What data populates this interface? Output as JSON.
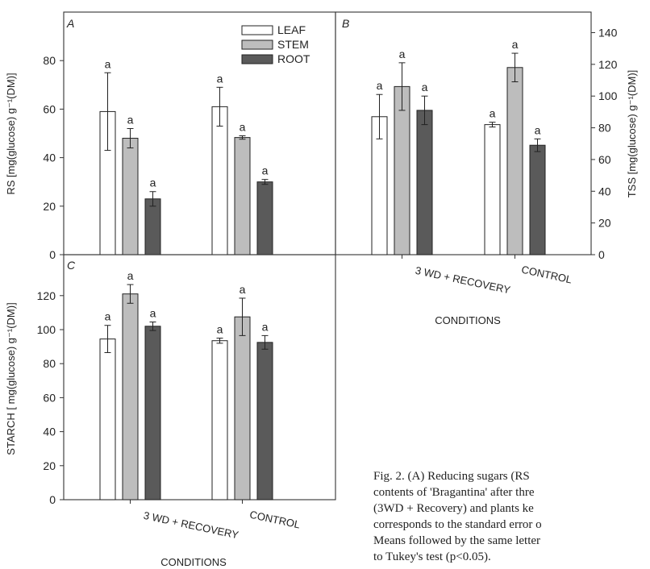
{
  "figure": {
    "legend": [
      {
        "label": "LEAF",
        "color": "#ffffff"
      },
      {
        "label": "STEM",
        "color": "#bdbdbd"
      },
      {
        "label": "ROOT",
        "color": "#5a5a5a"
      }
    ],
    "caption_lines": [
      "Fig. 2. (A) Reducing sugars (RS",
      "contents of 'Bragantina' after thre",
      "(3WD + Recovery) and plants ke",
      "corresponds to the standard error o",
      "Means followed by the same letter",
      "to Tukey's test (p<0.05)."
    ]
  },
  "chart_data": [
    {
      "panel": "A",
      "type": "bar",
      "ylabel": "RS [mg(glucose) g⁻¹(DM)]",
      "ylim": [
        0,
        95
      ],
      "yticks": [
        0,
        20,
        40,
        60,
        80
      ],
      "categories": [
        "3 WD + RECOVERY",
        "CONTROL"
      ],
      "series": [
        {
          "name": "LEAF",
          "values": [
            59,
            61
          ],
          "errors": [
            16,
            8
          ],
          "letters": [
            "a",
            "a"
          ]
        },
        {
          "name": "STEM",
          "values": [
            48,
            48.3
          ],
          "errors": [
            4,
            0.7
          ],
          "letters": [
            "a",
            "a"
          ]
        },
        {
          "name": "ROOT",
          "values": [
            23,
            30
          ],
          "errors": [
            3,
            1
          ],
          "letters": [
            "a",
            "a"
          ]
        }
      ]
    },
    {
      "panel": "B",
      "type": "bar",
      "xlabel": "CONDITIONS",
      "ylabel": "TSS [mg(glucose) g⁻¹(DM)]",
      "ylim": [
        0,
        152
      ],
      "yticks": [
        0,
        20,
        40,
        60,
        80,
        100,
        120,
        140
      ],
      "categories": [
        "3 WD + RECOVERY",
        "CONTROL"
      ],
      "series": [
        {
          "name": "LEAF",
          "values": [
            87,
            82
          ],
          "errors": [
            14,
            1.5
          ],
          "letters": [
            "a",
            "a"
          ]
        },
        {
          "name": "STEM",
          "values": [
            106,
            118
          ],
          "errors": [
            15,
            9
          ],
          "letters": [
            "a",
            "a"
          ]
        },
        {
          "name": "ROOT",
          "values": [
            91,
            69
          ],
          "errors": [
            9,
            4
          ],
          "letters": [
            "a",
            "a"
          ]
        }
      ]
    },
    {
      "panel": "C",
      "type": "bar",
      "xlabel": "CONDITIONS",
      "ylabel": "STARCH [ mg(glucose) g⁻¹(DM)]",
      "ylim": [
        0,
        132
      ],
      "yticks": [
        0,
        20,
        40,
        60,
        80,
        100,
        120
      ],
      "categories": [
        "3 WD + RECOVERY",
        "CONTROL"
      ],
      "series": [
        {
          "name": "LEAF",
          "values": [
            94.5,
            93.5
          ],
          "errors": [
            8,
            1.5
          ],
          "letters": [
            "a",
            "a"
          ]
        },
        {
          "name": "STEM",
          "values": [
            121,
            107.5
          ],
          "errors": [
            5.5,
            11
          ],
          "letters": [
            "a",
            "a"
          ]
        },
        {
          "name": "ROOT",
          "values": [
            102,
            92.5
          ],
          "errors": [
            2.5,
            4
          ],
          "letters": [
            "a",
            "a"
          ]
        }
      ]
    }
  ]
}
